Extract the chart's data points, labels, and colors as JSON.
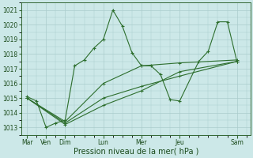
{
  "xlabel": "Pression niveau de la mer( hPa )",
  "background_color": "#cce8e8",
  "grid_color": "#aacccc",
  "line_color": "#2d6e2d",
  "ylim": [
    1012.5,
    1021.5
  ],
  "yticks": [
    1013,
    1014,
    1015,
    1016,
    1017,
    1018,
    1019,
    1020,
    1021
  ],
  "xtick_positions": [
    0,
    1,
    2,
    4,
    6,
    8,
    11
  ],
  "xtick_labels": [
    "Mar",
    "Ven",
    "Dim",
    "Lun",
    "Mer",
    "Jeu",
    "Sam"
  ],
  "xlim": [
    -0.3,
    11.7
  ],
  "vline_positions": [
    0,
    1,
    2,
    4,
    6,
    8,
    11
  ],
  "line1_x": [
    0,
    0.5,
    1,
    1.5,
    2,
    2.5,
    3,
    3.5,
    4,
    4.5,
    5,
    5.5,
    6,
    6.5,
    7,
    7.5,
    8,
    9,
    9.5,
    10,
    10.5,
    11
  ],
  "line1_y": [
    1015.1,
    1014.8,
    1013.0,
    1013.3,
    1013.5,
    1017.2,
    1017.6,
    1018.4,
    1019.0,
    1021.0,
    1019.9,
    1018.1,
    1017.2,
    1017.2,
    1016.6,
    1014.9,
    1014.8,
    1017.5,
    1018.2,
    1020.2,
    1020.2,
    1017.5
  ],
  "line2_x": [
    0,
    2,
    4,
    6,
    8,
    11
  ],
  "line2_y": [
    1015.0,
    1013.4,
    1016.0,
    1017.2,
    1017.4,
    1017.6
  ],
  "line3_x": [
    0,
    2,
    4,
    6,
    8,
    11
  ],
  "line3_y": [
    1015.0,
    1013.3,
    1015.0,
    1015.8,
    1016.5,
    1017.5
  ],
  "line4_x": [
    0,
    2,
    4,
    6,
    8,
    11
  ],
  "line4_y": [
    1015.0,
    1013.2,
    1014.5,
    1015.5,
    1016.8,
    1017.5
  ]
}
